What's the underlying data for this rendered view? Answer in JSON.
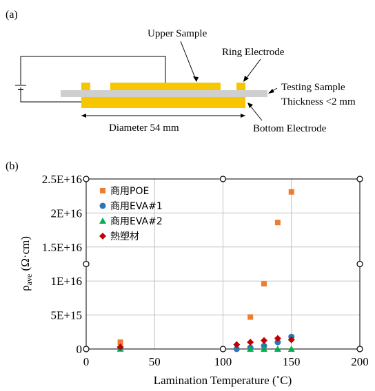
{
  "colors": {
    "electrode": "#f7c600",
    "sample": "#cfcfcf",
    "grid": "#bfbfbf",
    "poe": "#ed7d31",
    "eva1": "#2e75b6",
    "eva2": "#00b050",
    "thermo": "#c00000"
  },
  "diagram": {
    "panel_label": "(a)",
    "upper_sample": "Upper Sample",
    "ring_electrode": "Ring Electrode",
    "testing_sample_line1": "Testing Sample",
    "testing_sample_line2": "Thickness <2 mm",
    "diameter": "Diameter 54 mm",
    "bottom_electrode": "Bottom Electrode"
  },
  "chart_data": {
    "panel_label": "(b)",
    "type": "scatter",
    "xlabel": "Lamination Temperature (˚C)",
    "ylabel_main": "ρ",
    "ylabel_sub": "ave",
    "ylabel_unit": " (Ω·cm)",
    "xlim": [
      0,
      200
    ],
    "ylim": [
      0,
      2.5e+16
    ],
    "x_ticks": [
      {
        "value": 0,
        "label": "0"
      },
      {
        "value": 50,
        "label": "50"
      },
      {
        "value": 100,
        "label": "100"
      },
      {
        "value": 150,
        "label": "150"
      },
      {
        "value": 200,
        "label": "200"
      }
    ],
    "y_ticks": [
      {
        "value": 0,
        "label": "0"
      },
      {
        "value": 5000000000000000.0,
        "label": "5E+15"
      },
      {
        "value": 1e+16,
        "label": "1E+16"
      },
      {
        "value": 1.5e+16,
        "label": "1.5E+16"
      },
      {
        "value": 2e+16,
        "label": "2E+16"
      },
      {
        "value": 2.5e+16,
        "label": "2.5E+16"
      }
    ],
    "grid": true,
    "legend_position": "top-left",
    "series": [
      {
        "name": "商用POE",
        "marker": "square",
        "color": "#ed7d31",
        "points": [
          [
            25,
            1000000000000000.0
          ],
          [
            120,
            4700000000000000.0
          ],
          [
            130,
            9600000000000000.0
          ],
          [
            140,
            1.86e+16
          ],
          [
            150,
            2.31e+16
          ]
        ]
      },
      {
        "name": "商用EVA#1",
        "marker": "circle",
        "color": "#2e75b6",
        "points": [
          [
            25,
            100000000000000.0
          ],
          [
            110,
            10000000000000.0
          ],
          [
            120,
            200000000000000.0
          ],
          [
            130,
            450000000000000.0
          ],
          [
            140,
            1000000000000000.0
          ],
          [
            150,
            1800000000000000.0
          ]
        ]
      },
      {
        "name": "商用EVA#2",
        "marker": "triangle",
        "color": "#00b050",
        "points": [
          [
            25,
            10000000000000.0
          ],
          [
            120,
            5000000000000.0
          ],
          [
            130,
            5000000000000.0
          ],
          [
            140,
            5000000000000.0
          ],
          [
            150,
            5000000000000.0
          ]
        ]
      },
      {
        "name": "熱塑材",
        "marker": "diamond",
        "color": "#c00000",
        "points": [
          [
            25,
            300000000000000.0
          ],
          [
            110,
            650000000000000.0
          ],
          [
            120,
            1000000000000000.0
          ],
          [
            130,
            1250000000000000.0
          ],
          [
            140,
            1550000000000000.0
          ],
          [
            150,
            1350000000000000.0
          ]
        ]
      }
    ]
  }
}
